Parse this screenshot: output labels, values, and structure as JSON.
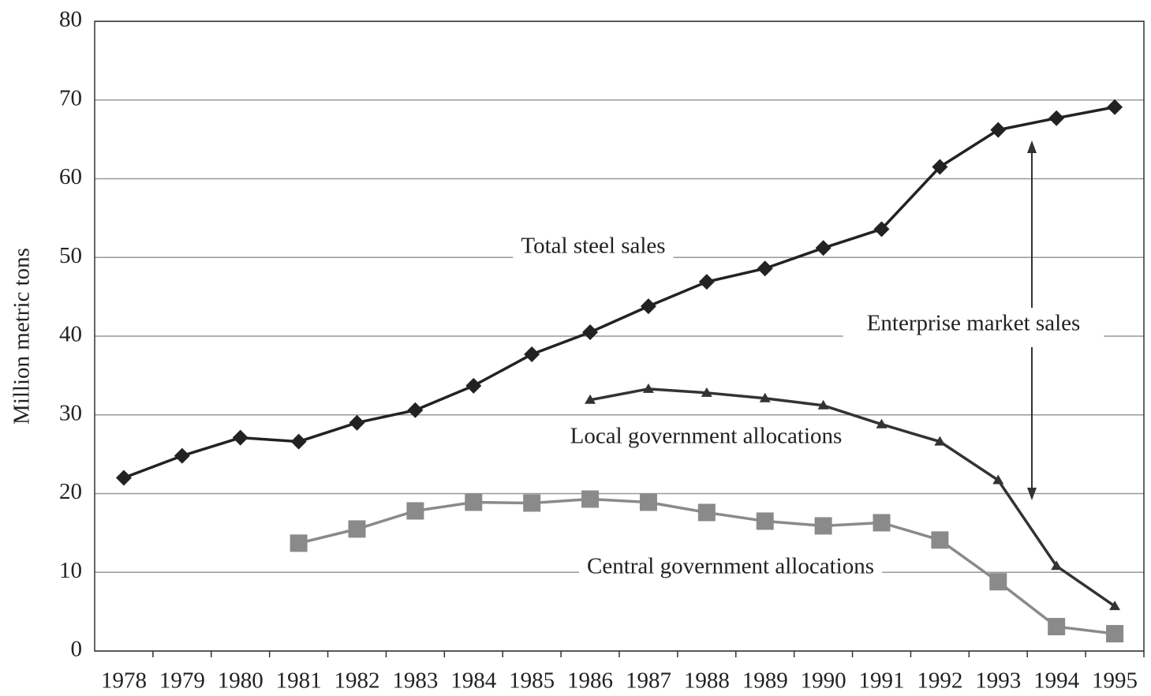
{
  "chart_data": {
    "type": "line",
    "y_label": "Million metric tons",
    "categories": [
      "1978",
      "1979",
      "1980",
      "1981",
      "1982",
      "1983",
      "1984",
      "1985",
      "1986",
      "1987",
      "1988",
      "1989",
      "1990",
      "1991",
      "1992",
      "1993",
      "1994",
      "1995"
    ],
    "series": [
      {
        "name": "Total steel sales",
        "color": "#222222",
        "marker": "diamond",
        "values": [
          22,
          24.8,
          27.1,
          26.6,
          29,
          30.6,
          33.7,
          37.7,
          40.5,
          43.8,
          46.9,
          48.6,
          51.2,
          53.6,
          61.5,
          66.2,
          67.7,
          69.1
        ]
      },
      {
        "name": "Local government allocations",
        "color": "#333333",
        "marker": "triangle",
        "values": [
          null,
          null,
          null,
          null,
          null,
          null,
          null,
          null,
          31.9,
          33.3,
          32.8,
          32.1,
          31.2,
          28.8,
          26.6,
          21.7,
          10.8,
          5.7
        ]
      },
      {
        "name": "Central government allocations",
        "color": "#8a8a8a",
        "marker": "square",
        "values": [
          null,
          null,
          null,
          13.7,
          15.5,
          17.8,
          18.9,
          18.8,
          19.3,
          18.9,
          17.6,
          16.5,
          15.9,
          16.3,
          14.1,
          8.8,
          3.1,
          2.2
        ]
      }
    ],
    "annotations": [
      "Enterprise market sales"
    ],
    "ylim": [
      0,
      80
    ],
    "yticks": [
      0,
      10,
      20,
      30,
      40,
      50,
      60,
      70,
      80
    ],
    "grid": true
  }
}
